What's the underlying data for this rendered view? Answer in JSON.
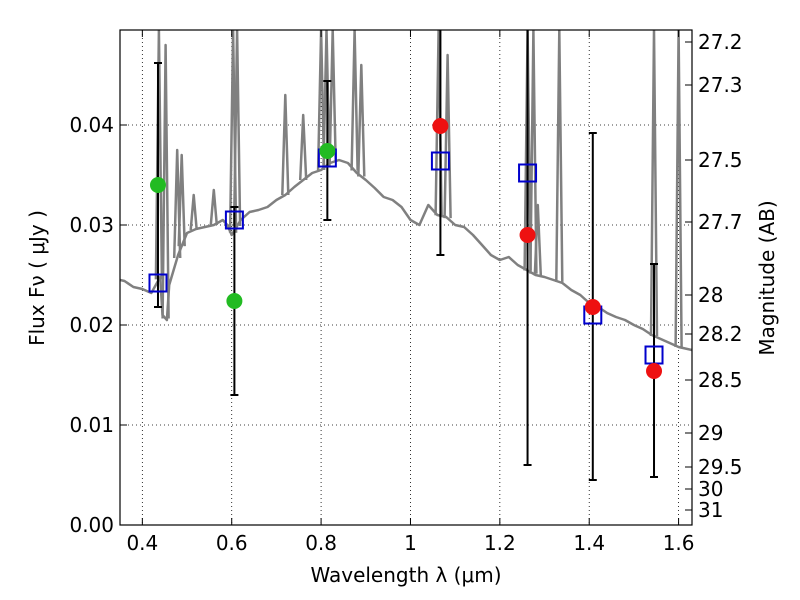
{
  "chart_data": {
    "type": "scatter",
    "xlabel": "Wavelength  λ (μm)",
    "ylabel": "Flux  Fν ( μJy )",
    "ylabel_right": "Magnitude (AB)",
    "xlim": [
      0.35,
      1.63
    ],
    "ylim": [
      0.0,
      0.0495
    ],
    "x_ticks": [
      0.4,
      0.6,
      0.8,
      1.0,
      1.2,
      1.4,
      1.6
    ],
    "x_tick_labels": [
      "0.4",
      "0.6",
      "0.8",
      "1",
      "1.2",
      "1.4",
      "1.6"
    ],
    "y_ticks": [
      0.0,
      0.01,
      0.02,
      0.03,
      0.04
    ],
    "y_tick_labels": [
      "0.00",
      "0.01",
      "0.02",
      "0.03",
      "0.04"
    ],
    "mag_ticks": [
      {
        "label": "27.2",
        "flux": 0.0483
      },
      {
        "label": "27.3",
        "flux": 0.044
      },
      {
        "label": "27.5",
        "flux": 0.0365
      },
      {
        "label": "27.7",
        "flux": 0.0303
      },
      {
        "label": "28",
        "flux": 0.023
      },
      {
        "label": "28.2",
        "flux": 0.0191
      },
      {
        "label": "28.5",
        "flux": 0.0145
      },
      {
        "label": "29",
        "flux": 0.0092
      },
      {
        "label": "29.5",
        "flux": 0.0058
      },
      {
        "label": "30",
        "flux": 0.0036
      },
      {
        "label": "31",
        "flux": 0.0015
      }
    ],
    "grid": true,
    "observed_green": [
      {
        "x": 0.435,
        "y": 0.034,
        "err_low": 0.0218,
        "err_high": 0.0462
      },
      {
        "x": 0.606,
        "y": 0.0224,
        "err_low": 0.013,
        "err_high": 0.0318
      },
      {
        "x": 0.814,
        "y": 0.0374,
        "err_low": 0.0305,
        "err_high": 0.0444
      }
    ],
    "observed_red": [
      {
        "x": 1.067,
        "y": 0.0399,
        "err_low": 0.027,
        "err_high": 0.05
      },
      {
        "x": 1.262,
        "y": 0.029,
        "err_low": 0.006,
        "err_high": 0.05
      },
      {
        "x": 1.408,
        "y": 0.0218,
        "err_low": 0.0045,
        "err_high": 0.0392
      },
      {
        "x": 1.545,
        "y": 0.0154,
        "err_low": 0.0048,
        "err_high": 0.0261
      }
    ],
    "model_squares": [
      {
        "x": 0.435,
        "y": 0.0242
      },
      {
        "x": 0.606,
        "y": 0.0305
      },
      {
        "x": 0.814,
        "y": 0.0367
      },
      {
        "x": 1.067,
        "y": 0.0364
      },
      {
        "x": 1.262,
        "y": 0.0352
      },
      {
        "x": 1.408,
        "y": 0.021
      },
      {
        "x": 1.545,
        "y": 0.017
      }
    ],
    "model_spectrum": {
      "x": [
        0.35,
        0.36,
        0.38,
        0.4,
        0.42,
        0.43,
        0.44,
        0.445,
        0.455,
        0.46,
        0.48,
        0.5,
        0.52,
        0.54,
        0.56,
        0.58,
        0.59,
        0.6,
        0.62,
        0.64,
        0.66,
        0.68,
        0.7,
        0.72,
        0.74,
        0.76,
        0.78,
        0.8,
        0.82,
        0.84,
        0.86,
        0.88,
        0.9,
        0.92,
        0.94,
        0.96,
        0.98,
        1.0,
        1.02,
        1.04,
        1.06,
        1.08,
        1.1,
        1.12,
        1.14,
        1.16,
        1.18,
        1.2,
        1.22,
        1.24,
        1.26,
        1.28,
        1.3,
        1.32,
        1.34,
        1.36,
        1.38,
        1.4,
        1.42,
        1.44,
        1.46,
        1.48,
        1.5,
        1.52,
        1.54,
        1.56,
        1.58,
        1.6,
        1.63
      ],
      "y": [
        0.0245,
        0.0244,
        0.0238,
        0.0236,
        0.0232,
        0.024,
        0.0248,
        0.021,
        0.0205,
        0.024,
        0.027,
        0.0292,
        0.0296,
        0.0298,
        0.03,
        0.0305,
        0.03,
        0.029,
        0.0305,
        0.0313,
        0.0315,
        0.0318,
        0.0325,
        0.033,
        0.0338,
        0.0345,
        0.0352,
        0.0355,
        0.0362,
        0.0365,
        0.0362,
        0.0352,
        0.0345,
        0.0337,
        0.0328,
        0.0325,
        0.0318,
        0.0305,
        0.03,
        0.032,
        0.031,
        0.0308,
        0.03,
        0.0298,
        0.029,
        0.028,
        0.027,
        0.0265,
        0.0268,
        0.026,
        0.0255,
        0.025,
        0.0248,
        0.0245,
        0.0242,
        0.0235,
        0.023,
        0.0222,
        0.0218,
        0.0212,
        0.0208,
        0.0205,
        0.02,
        0.0196,
        0.019,
        0.0186,
        0.0182,
        0.0178,
        0.0175
      ]
    },
    "emission_lines": [
      {
        "x": 0.437,
        "y": 0.0495
      },
      {
        "x": 0.452,
        "y": 0.048
      },
      {
        "x": 0.478,
        "y": 0.0375
      },
      {
        "x": 0.488,
        "y": 0.037
      },
      {
        "x": 0.515,
        "y": 0.033
      },
      {
        "x": 0.56,
        "y": 0.0335
      },
      {
        "x": 0.603,
        "y": 0.0495
      },
      {
        "x": 0.612,
        "y": 0.0495
      },
      {
        "x": 0.72,
        "y": 0.043
      },
      {
        "x": 0.76,
        "y": 0.041
      },
      {
        "x": 0.8,
        "y": 0.0495
      },
      {
        "x": 0.812,
        "y": 0.0495
      },
      {
        "x": 0.826,
        "y": 0.0495
      },
      {
        "x": 0.875,
        "y": 0.0495
      },
      {
        "x": 0.89,
        "y": 0.046
      },
      {
        "x": 1.063,
        "y": 0.0495
      },
      {
        "x": 1.083,
        "y": 0.047
      },
      {
        "x": 1.262,
        "y": 0.0495
      },
      {
        "x": 1.275,
        "y": 0.0495
      },
      {
        "x": 1.285,
        "y": 0.032
      },
      {
        "x": 1.333,
        "y": 0.0495
      },
      {
        "x": 1.545,
        "y": 0.0495
      },
      {
        "x": 1.6,
        "y": 0.0495
      }
    ],
    "colors": {
      "green": "#22bb22",
      "red": "#ee1111",
      "square": "#0000cc",
      "spectrum": "#808080",
      "errorbar": "#000000"
    }
  }
}
